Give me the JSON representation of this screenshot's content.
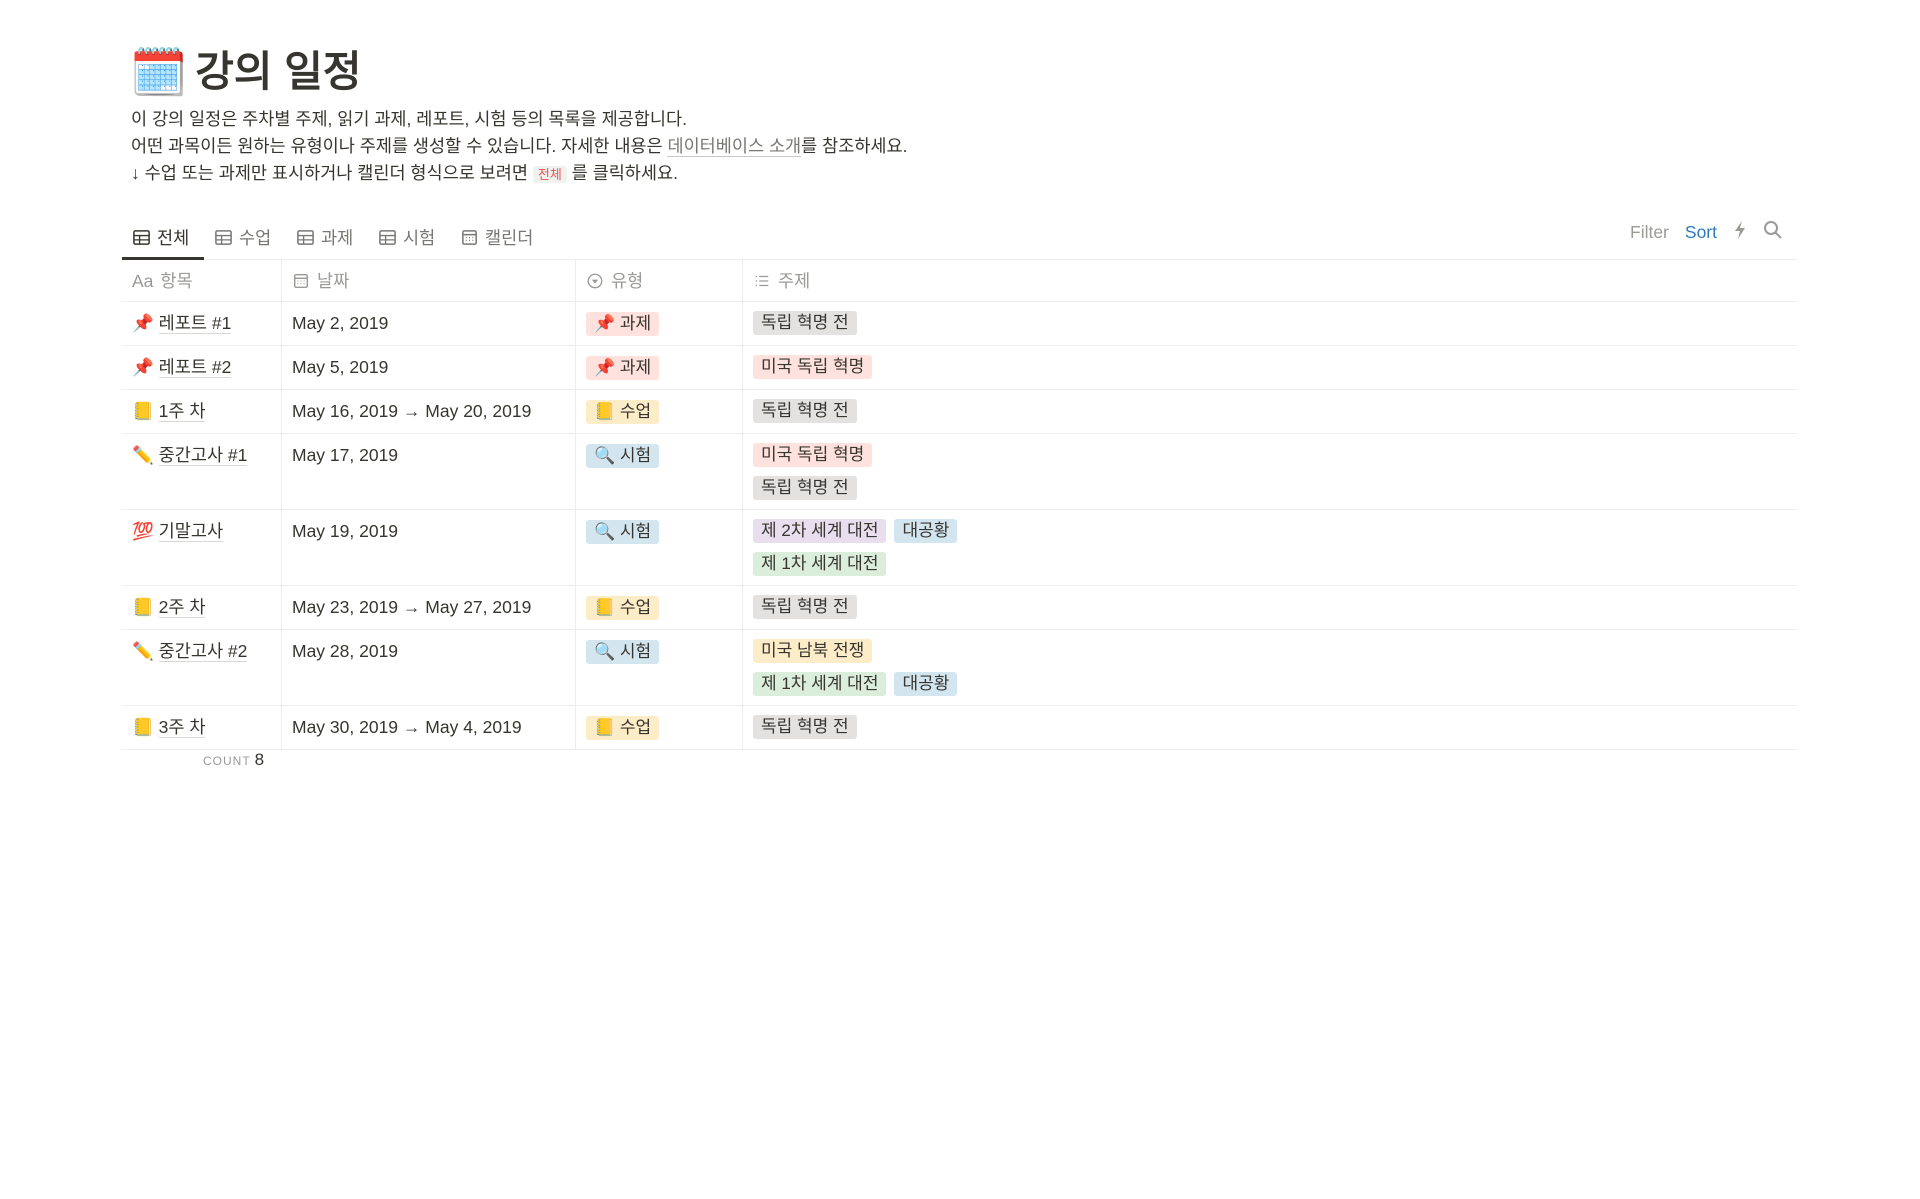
{
  "page": {
    "icon": "🗓️",
    "title": "강의 일정",
    "desc1": "이 강의 일정은 주차별 주제, 읽기 과제, 레포트, 시험 등의 목록을 제공합니다.",
    "desc2_pre": "어떤 과목이든 원하는 유형이나 주제를 생성할 수 있습니다. 자세한 내용은 ",
    "desc2_link": "데이터베이스 소개",
    "desc2_post": "를 참조하세요.",
    "desc3_pre": "↓ 수업 또는 과제만 표시하거나 캘린더 형식으로 보려면 ",
    "desc3_tag": "전체",
    "desc3_post": " 를 클릭하세요."
  },
  "tabs": [
    {
      "label": "전체",
      "icon": "table-icon",
      "active": true
    },
    {
      "label": "수업",
      "icon": "table-icon"
    },
    {
      "label": "과제",
      "icon": "table-icon"
    },
    {
      "label": "시험",
      "icon": "table-icon"
    },
    {
      "label": "캘린더",
      "icon": "calendar-icon"
    }
  ],
  "toolbar": {
    "filter": "Filter",
    "sort": "Sort",
    "accent": "#2f7bbd"
  },
  "columns": [
    {
      "label": "항목",
      "icon_text": "Aa"
    },
    {
      "label": "날짜",
      "icon": "calendar-icon"
    },
    {
      "label": "유형",
      "icon": "select-icon"
    },
    {
      "label": "주제",
      "icon": "list-icon"
    }
  ],
  "tag_colors": {
    "gray": "#e3e2e0",
    "red": "#ffe2dd",
    "yellow": "#fdecc8",
    "blue": "#d3e5ef",
    "purple": "#e8deee",
    "green": "#dbeddb"
  },
  "rows": [
    {
      "emoji": "📌",
      "name": "레포트 #1",
      "date": "May 2, 2019",
      "type": {
        "label": "📌 과제",
        "color": "red"
      },
      "topics": [
        {
          "label": "독립 혁명 전",
          "color": "gray"
        }
      ]
    },
    {
      "emoji": "📌",
      "name": "레포트 #2",
      "date": "May 5, 2019",
      "type": {
        "label": "📌 과제",
        "color": "red"
      },
      "topics": [
        {
          "label": "미국 독립 혁명",
          "color": "red"
        }
      ]
    },
    {
      "emoji": "📒",
      "name": "1주 차",
      "date": "May 16, 2019 → May 20, 2019",
      "type": {
        "label": "📒 수업",
        "color": "yellow"
      },
      "topics": [
        {
          "label": "독립 혁명 전",
          "color": "gray"
        }
      ]
    },
    {
      "emoji": "✏️",
      "name": "중간고사 #1",
      "date": "May 17, 2019",
      "type": {
        "label": "🔍 시험",
        "color": "blue"
      },
      "topics": [
        {
          "label": "미국 독립 혁명",
          "color": "red"
        },
        {
          "label": "독립 혁명 전",
          "color": "gray"
        }
      ]
    },
    {
      "emoji": "💯",
      "name": "기말고사",
      "date": "May 19, 2019",
      "type": {
        "label": "🔍 시험",
        "color": "blue"
      },
      "topics": [
        {
          "label": "제 2차 세계 대전",
          "color": "purple"
        },
        {
          "label": "대공황",
          "color": "blue"
        },
        {
          "label": "제 1차 세계 대전",
          "color": "green"
        }
      ]
    },
    {
      "emoji": "📒",
      "name": "2주 차",
      "date": "May 23, 2019 → May 27, 2019",
      "type": {
        "label": "📒 수업",
        "color": "yellow"
      },
      "topics": [
        {
          "label": "독립 혁명 전",
          "color": "gray"
        }
      ]
    },
    {
      "emoji": "✏️",
      "name": "중간고사 #2",
      "date": "May 28, 2019",
      "type": {
        "label": "🔍 시험",
        "color": "blue"
      },
      "topics": [
        {
          "label": "미국 남북 전쟁",
          "color": "yellow"
        },
        {
          "label": "제 1차 세계 대전",
          "color": "green"
        },
        {
          "label": "대공황",
          "color": "blue"
        }
      ]
    },
    {
      "emoji": "📒",
      "name": "3주 차",
      "date": "May 30, 2019 → May 4, 2019",
      "type": {
        "label": "📒 수업",
        "color": "yellow"
      },
      "topics": [
        {
          "label": "독립 혁명 전",
          "color": "gray"
        }
      ]
    }
  ],
  "footer": {
    "count_label": "COUNT",
    "count_value": "8"
  }
}
